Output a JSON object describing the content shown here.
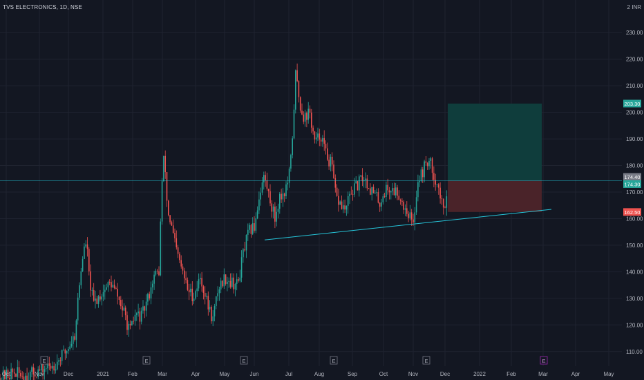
{
  "header": {
    "symbol": "TVS ELECTRONICS",
    "interval": "1D",
    "exchange": "NSE"
  },
  "currency": "INR",
  "price_scale_label": "2",
  "chart_data": {
    "type": "candlestick",
    "y_ticks": [
      110,
      120,
      130,
      140,
      150,
      160,
      170,
      180,
      190,
      200,
      210,
      220,
      230
    ],
    "y_tick_labels": [
      "110.00",
      "120.00",
      "130.00",
      "140.00",
      "150.00",
      "160.00",
      "170.00",
      "180.00",
      "190.00",
      "200.00",
      "210.00",
      "220.00",
      "230.00"
    ],
    "x_labels": [
      "Oct",
      "Nov",
      "Dec",
      "2021",
      "Feb",
      "Mar",
      "Apr",
      "May",
      "Jun",
      "Jul",
      "Aug",
      "Sep",
      "Oct",
      "Nov",
      "Dec",
      "2022",
      "Feb",
      "Mar",
      "Apr",
      "May"
    ],
    "ylim": [
      105,
      235
    ],
    "price_labels": [
      {
        "value": 203.3,
        "text": "203.30",
        "color": "#26a69a"
      },
      {
        "value": 174.4,
        "text": "174.40",
        "color": "#787b86"
      },
      {
        "value": 174.3,
        "text": "174.30",
        "color": "#26a69a"
      },
      {
        "value": 162.5,
        "text": "162.50",
        "color": "#ef5350"
      }
    ],
    "horizontal_line": {
      "value": 174.3,
      "color": "#26c6da"
    },
    "trendline": {
      "from": {
        "x": "Jun",
        "y": 152
      },
      "to": {
        "x": "Mar",
        "y": 163.5
      },
      "color": "#26c6da"
    },
    "position_tool": {
      "entry": 174.3,
      "target": 203.3,
      "stop": 162.5,
      "start": "Dec",
      "end": "Mar",
      "profit_color": "#0f3d3c",
      "loss_color": "#4a2329"
    },
    "earnings_markers": [
      {
        "x": "Jan",
        "text": "E"
      },
      {
        "x": "Feb",
        "text": "E"
      },
      {
        "x": "May",
        "text": "E"
      },
      {
        "x": "Aug",
        "text": "E"
      },
      {
        "x": "Nov",
        "text": "E"
      },
      {
        "x": "Feb",
        "text": "E",
        "future": true
      }
    ],
    "colors": {
      "up": "#26a69a",
      "down": "#ef5350",
      "grid": "#1f2330",
      "text": "#b2b5be"
    },
    "candle_path": [
      [
        0,
        100
      ],
      [
        18,
        102
      ],
      [
        40,
        101
      ],
      [
        78,
        105
      ],
      [
        95,
        110
      ],
      [
        108,
        116
      ],
      [
        113,
        130
      ],
      [
        119,
        145
      ],
      [
        125,
        152
      ],
      [
        129,
        138
      ],
      [
        135,
        128
      ],
      [
        147,
        132
      ],
      [
        160,
        136
      ],
      [
        170,
        131
      ],
      [
        180,
        124
      ],
      [
        188,
        117
      ],
      [
        196,
        124
      ],
      [
        205,
        123
      ],
      [
        214,
        130
      ],
      [
        222,
        138
      ],
      [
        230,
        140
      ],
      [
        234,
        172
      ],
      [
        238,
        185
      ],
      [
        242,
        164
      ],
      [
        248,
        157
      ],
      [
        256,
        147
      ],
      [
        264,
        140
      ],
      [
        272,
        133
      ],
      [
        280,
        131
      ],
      [
        290,
        138
      ],
      [
        300,
        128
      ],
      [
        308,
        122
      ],
      [
        316,
        134
      ],
      [
        326,
        138
      ],
      [
        336,
        136
      ],
      [
        344,
        135
      ],
      [
        352,
        147
      ],
      [
        360,
        155
      ],
      [
        368,
        157
      ],
      [
        376,
        170
      ],
      [
        382,
        176
      ],
      [
        390,
        168
      ],
      [
        398,
        160
      ],
      [
        404,
        168
      ],
      [
        412,
        170
      ],
      [
        418,
        175
      ],
      [
        422,
        185
      ],
      [
        428,
        215
      ],
      [
        434,
        203
      ],
      [
        440,
        198
      ],
      [
        448,
        200
      ],
      [
        456,
        188
      ],
      [
        464,
        192
      ],
      [
        472,
        184
      ],
      [
        480,
        180
      ],
      [
        486,
        168
      ],
      [
        494,
        165
      ],
      [
        500,
        163
      ],
      [
        508,
        170
      ],
      [
        516,
        172
      ],
      [
        526,
        176
      ],
      [
        534,
        172
      ],
      [
        542,
        169
      ],
      [
        550,
        166
      ],
      [
        558,
        171
      ],
      [
        566,
        171
      ],
      [
        576,
        170
      ],
      [
        584,
        165
      ],
      [
        592,
        162
      ],
      [
        598,
        157
      ],
      [
        604,
        174
      ],
      [
        612,
        178
      ],
      [
        618,
        182
      ],
      [
        624,
        180
      ],
      [
        630,
        175
      ],
      [
        636,
        170
      ],
      [
        642,
        162
      ],
      [
        648,
        174
      ]
    ]
  }
}
